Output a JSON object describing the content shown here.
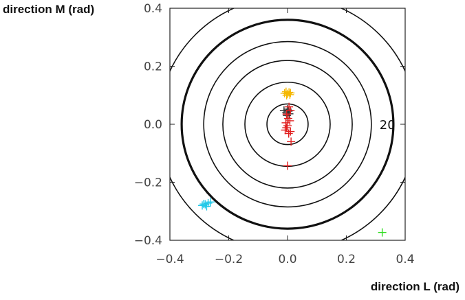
{
  "chart_data": {
    "type": "scatter",
    "xlabel": "direction L (rad)",
    "ylabel": "direction M (rad)",
    "xlim": [
      -0.4,
      0.4
    ],
    "ylim": [
      -0.4,
      0.4
    ],
    "x_ticks": [
      "−0.4",
      "−0.2",
      "0.0",
      "0.2",
      "0.4"
    ],
    "y_ticks": [
      "0.4",
      "0.2",
      "0.0",
      "−0.2",
      "−0.4"
    ],
    "x_tick_values": [
      -0.4,
      -0.2,
      0.0,
      0.2,
      0.4
    ],
    "y_tick_values": [
      0.4,
      0.2,
      0.0,
      -0.2,
      -0.4
    ],
    "grid": false,
    "contours": {
      "radii": [
        0.07,
        0.145,
        0.22,
        0.285,
        0.36,
        0.44
      ],
      "bold_radius": 0.36,
      "label": "20",
      "label_position": [
        0.335,
        0.0
      ]
    },
    "series": [
      {
        "color": "#f5b800",
        "points": [
          [
            -0.01,
            0.107
          ],
          [
            -0.005,
            0.112
          ],
          [
            0.0,
            0.105
          ],
          [
            0.005,
            0.11
          ],
          [
            0.01,
            0.108
          ],
          [
            -0.003,
            0.1
          ],
          [
            0.008,
            0.102
          ]
        ]
      },
      {
        "color": "#333333",
        "points": [
          [
            -0.012,
            0.048
          ],
          [
            0.0,
            0.052
          ],
          [
            -0.004,
            0.04
          ],
          [
            0.006,
            0.036
          ],
          [
            -0.002,
            0.03
          ],
          [
            0.003,
            0.045
          ]
        ]
      },
      {
        "color": "#e02020",
        "points": [
          [
            0.005,
            0.06
          ],
          [
            0.01,
            0.048
          ],
          [
            -0.003,
            0.035
          ],
          [
            0.002,
            0.02
          ],
          [
            0.008,
            0.012
          ],
          [
            -0.006,
            0.005
          ],
          [
            0.0,
            -0.005
          ],
          [
            -0.004,
            -0.012
          ],
          [
            -0.008,
            -0.02
          ],
          [
            0.01,
            -0.025
          ],
          [
            0.004,
            -0.032
          ],
          [
            0.012,
            -0.06
          ],
          [
            0.0,
            -0.143
          ]
        ]
      },
      {
        "color": "#20c8e8",
        "points": [
          [
            -0.29,
            -0.28
          ],
          [
            -0.28,
            -0.276
          ],
          [
            -0.27,
            -0.272
          ],
          [
            -0.262,
            -0.268
          ],
          [
            -0.275,
            -0.283
          ],
          [
            -0.285,
            -0.275
          ]
        ]
      },
      {
        "color": "#30dd20",
        "points": [
          [
            0.322,
            -0.373
          ]
        ]
      }
    ]
  }
}
